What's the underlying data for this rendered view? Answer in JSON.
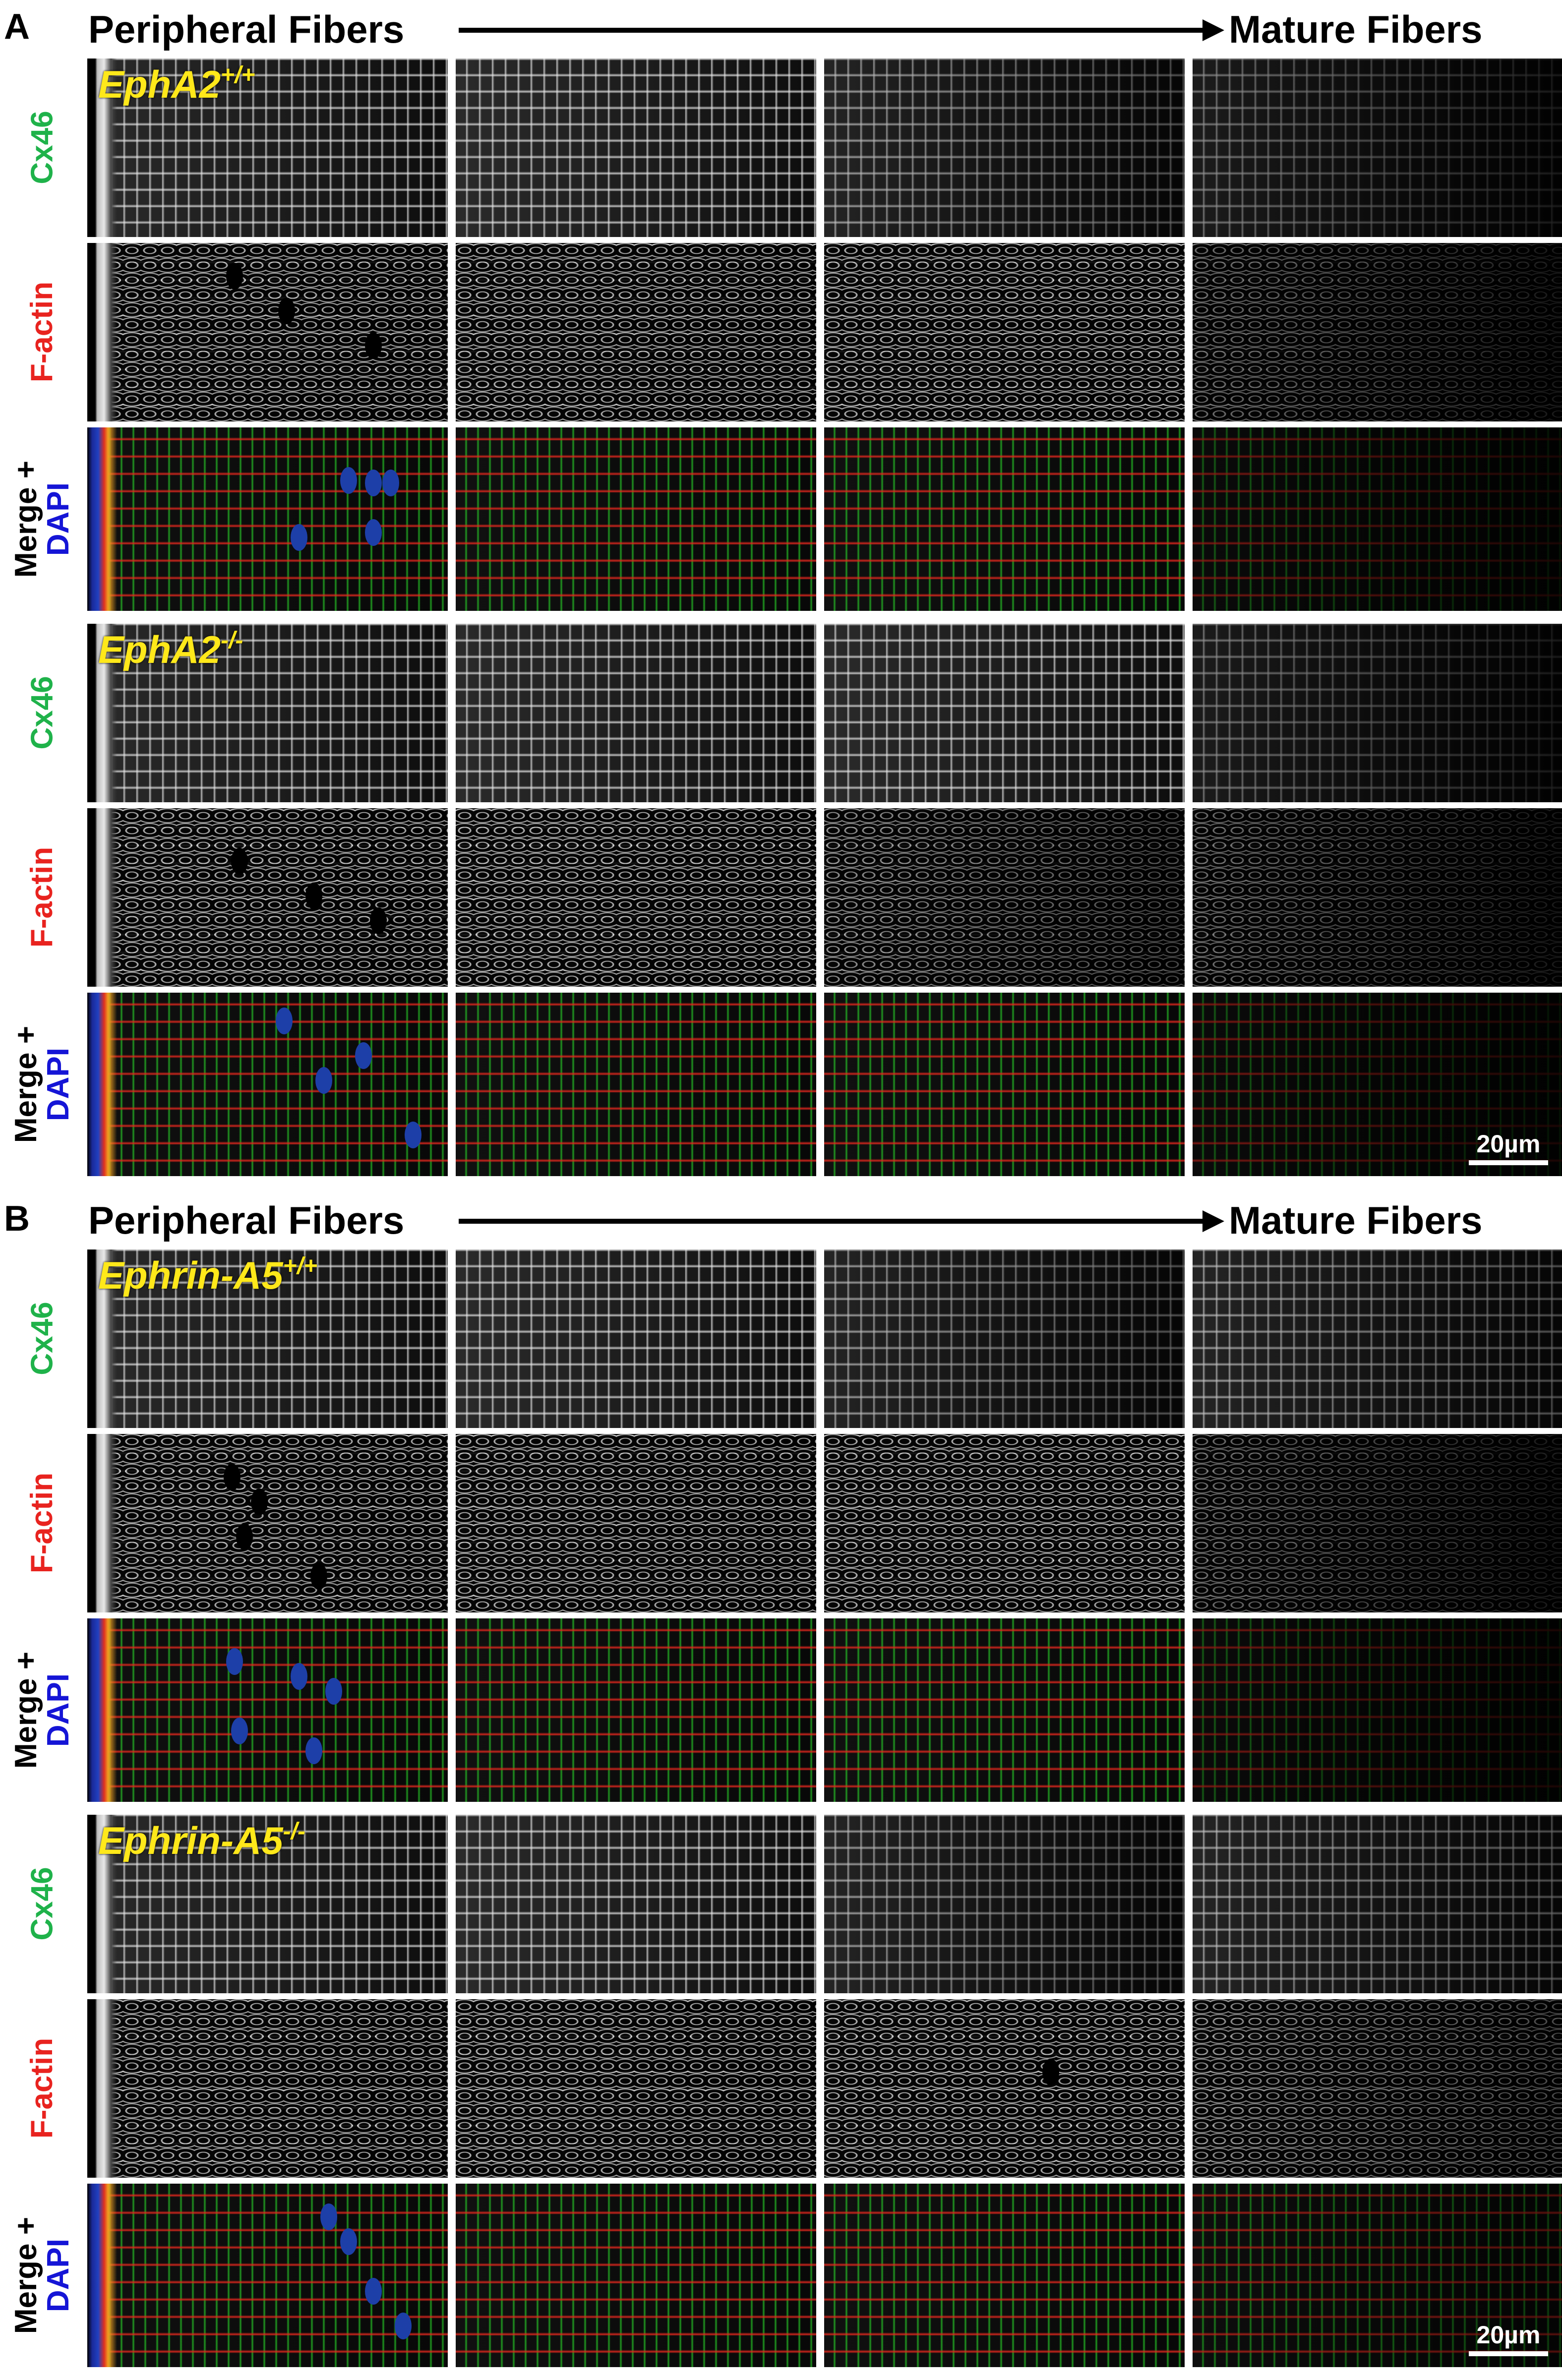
{
  "panels": [
    {
      "letter": "A",
      "header_left": "Peripheral Fibers",
      "header_right": "Mature Fibers",
      "genotypes": [
        {
          "gene": "EphA2",
          "allele": "+/+"
        },
        {
          "gene": "EphA2",
          "allele": "-/-"
        }
      ],
      "scale_bar": "20µm"
    },
    {
      "letter": "B",
      "header_left": "Peripheral Fibers",
      "header_right": "Mature Fibers",
      "genotypes": [
        {
          "gene": "Ephrin-A5",
          "allele": "+/+"
        },
        {
          "gene": "Ephrin-A5",
          "allele": "-/-"
        }
      ],
      "scale_bar": "20µm"
    }
  ],
  "row_labels": {
    "cx46": {
      "text": "Cx46",
      "color": "#1fb24a"
    },
    "factin": {
      "text": "F-actin",
      "color": "#e8231f"
    },
    "merge": {
      "text": "Merge +",
      "color": "#000000"
    },
    "dapi": {
      "text": "DAPI",
      "color": "#1515d6"
    }
  },
  "colors": {
    "genotype_label": "#ffe81a",
    "background": "#ffffff",
    "tile_background": "#000000"
  }
}
